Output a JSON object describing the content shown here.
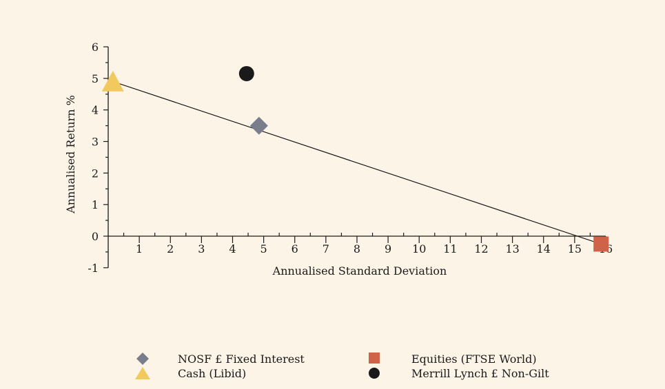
{
  "chart_data": {
    "type": "scatter",
    "xlabel": "Annualised Standard Deviation",
    "ylabel": "Annualised Return %",
    "xlim": [
      0,
      16
    ],
    "ylim": [
      -1,
      6
    ],
    "x_ticks": [
      1,
      2,
      3,
      4,
      5,
      6,
      7,
      8,
      9,
      10,
      11,
      12,
      13,
      14,
      15,
      16
    ],
    "y_ticks": [
      -1,
      0,
      1,
      2,
      3,
      4,
      5,
      6
    ],
    "x_tick_labels": [
      "1",
      "2",
      "3",
      "4",
      "5",
      "6",
      "7",
      "8",
      "9",
      "10",
      "11",
      "12",
      "13",
      "14",
      "15",
      "16"
    ],
    "y_tick_labels": [
      "-1",
      "0",
      "1",
      "2",
      "3",
      "4",
      "5",
      "6"
    ],
    "zero_label": "0",
    "series": [
      {
        "name": "NOSF £ Fixed Interest",
        "marker": "diamond",
        "color": "#7a7d8c",
        "x": 4.85,
        "y": 3.5
      },
      {
        "name": "Cash (Libid)",
        "marker": "triangle",
        "color": "#f2c95e",
        "x": 0.15,
        "y": 4.85
      },
      {
        "name": "Equities (FTSE World)",
        "marker": "square",
        "color": "#d0624a",
        "x": 15.85,
        "y": -0.25
      },
      {
        "name": "Merrill Lynch £ Non-Gilt",
        "marker": "circle",
        "color": "#1a1a1a",
        "x": 4.45,
        "y": 5.15
      }
    ],
    "trendline": {
      "x": [
        0.15,
        15.85
      ],
      "y": [
        4.9,
        -0.25
      ],
      "color": "#1a1a1a"
    },
    "legend_position": "bottom"
  }
}
